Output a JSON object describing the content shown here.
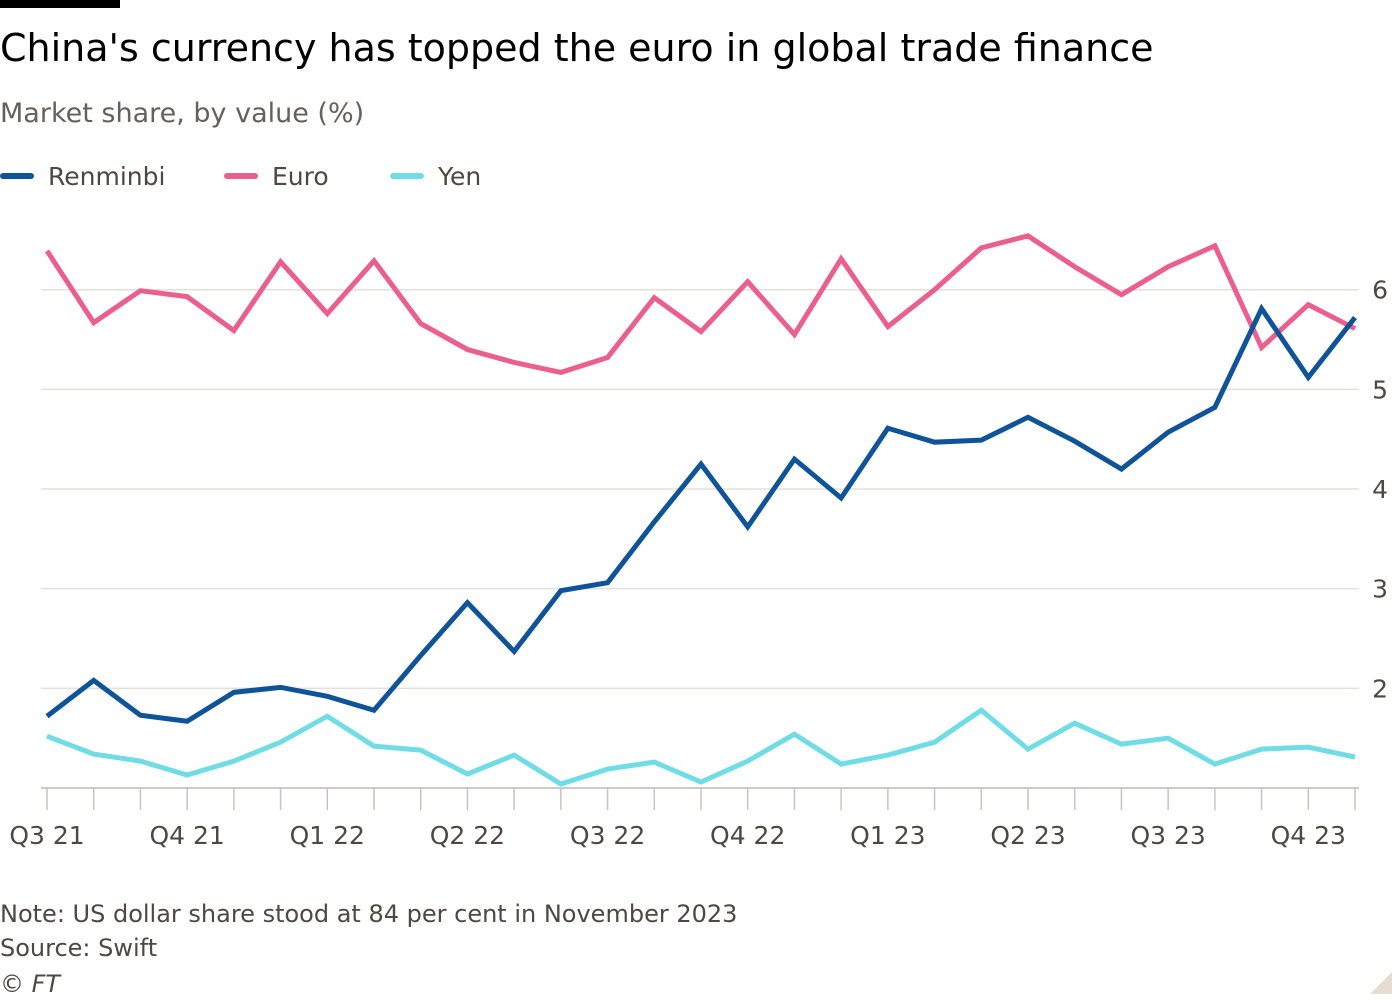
{
  "title": "China's currency has topped the euro in global trade finance",
  "subtitle": "Market share, by value (%)",
  "note": "Note: US dollar share stood at 84 per cent in November 2023",
  "source": "Source: Swift",
  "copyright": "© FT",
  "chart_data": {
    "type": "line",
    "title": "China's currency has topped the euro in global trade finance",
    "subtitle": "Market share, by value (%)",
    "xlabel": "",
    "ylabel": "",
    "x": [
      "Jul 2021",
      "Aug 2021",
      "Sep 2021",
      "Oct 2021",
      "Nov 2021",
      "Dec 2021",
      "Jan 2022",
      "Feb 2022",
      "Mar 2022",
      "Apr 2022",
      "May 2022",
      "Jun 2022",
      "Jul 2022",
      "Aug 2022",
      "Sep 2022",
      "Oct 2022",
      "Nov 2022",
      "Dec 2022",
      "Jan 2023",
      "Feb 2023",
      "Mar 2023",
      "Apr 2023",
      "May 2023",
      "Jun 2023",
      "Jul 2023",
      "Aug 2023",
      "Sep 2023",
      "Oct 2023",
      "Nov 2023"
    ],
    "x_tick_labels": [
      "Q3 21",
      "Q4 21",
      "Q1 22",
      "Q2 22",
      "Q3 22",
      "Q4 22",
      "Q1 23",
      "Q2 23",
      "Q3 23",
      "Q4 23"
    ],
    "x_tick_indices": [
      0,
      3,
      6,
      9,
      12,
      15,
      18,
      21,
      24,
      27
    ],
    "series": [
      {
        "name": "Renminbi",
        "color": "#0f5499",
        "values": [
          1.72,
          2.08,
          1.73,
          1.67,
          1.96,
          2.01,
          1.92,
          1.78,
          2.33,
          2.86,
          2.37,
          2.98,
          3.06,
          3.67,
          4.25,
          3.62,
          4.3,
          3.91,
          4.61,
          4.47,
          4.49,
          4.72,
          4.48,
          4.2,
          4.57,
          4.82,
          5.81,
          5.12,
          5.72
        ]
      },
      {
        "name": "Euro",
        "color": "#eb5e8d",
        "values": [
          6.39,
          5.67,
          5.99,
          5.93,
          5.59,
          6.28,
          5.76,
          6.29,
          5.66,
          5.4,
          5.27,
          5.17,
          5.32,
          5.92,
          5.58,
          6.08,
          5.55,
          6.31,
          5.63,
          6.0,
          6.42,
          6.54,
          6.23,
          5.95,
          6.23,
          6.44,
          5.42,
          5.85,
          5.61
        ]
      },
      {
        "name": "Yen",
        "color": "#70dce6",
        "values": [
          1.52,
          1.34,
          1.27,
          1.13,
          1.27,
          1.46,
          1.72,
          1.42,
          1.38,
          1.14,
          1.33,
          1.04,
          1.19,
          1.26,
          1.06,
          1.27,
          1.54,
          1.24,
          1.33,
          1.46,
          1.78,
          1.39,
          1.65,
          1.44,
          1.5,
          1.24,
          1.39,
          1.41,
          1.31
        ]
      }
    ],
    "y_ticks": [
      2,
      3,
      4,
      5,
      6
    ],
    "ylim": [
      1.0,
      6.9
    ],
    "grid": true,
    "legend_position": "top-left",
    "y_axis_side": "right"
  }
}
